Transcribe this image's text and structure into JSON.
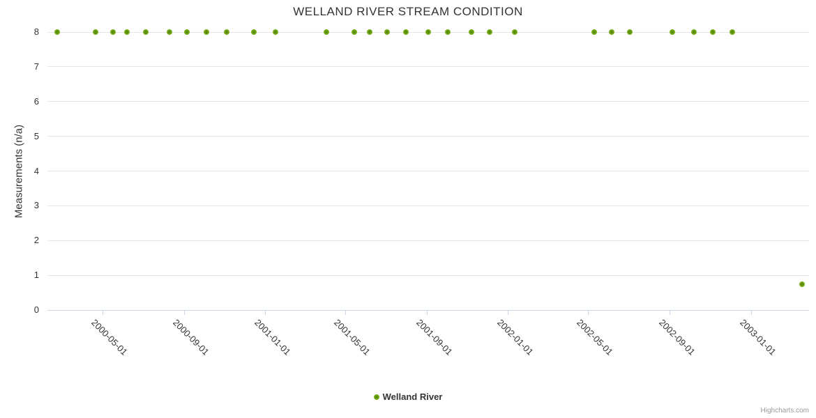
{
  "title": "WELLAND RIVER STREAM CONDITION",
  "credits": "Highcharts.com",
  "legend": {
    "position": "bottom-center",
    "items": [
      {
        "label": "Welland River",
        "color": "#8bbc21"
      }
    ]
  },
  "colors": {
    "series": "#8bbc21",
    "marker_gradient": [
      "#4f7d05",
      "#74aa1c",
      "#94c636"
    ],
    "gridline": "#e6e6e6",
    "axis_line": "#ccd6eb",
    "text": "#333333",
    "credits_text": "#999999",
    "background": "#ffffff"
  },
  "chart_data": {
    "type": "scatter",
    "title": "WELLAND RIVER STREAM CONDITION",
    "xlabel": "",
    "ylabel": "Measurements (n/a)",
    "ylim": [
      0,
      8
    ],
    "yticks": [
      0,
      1,
      2,
      3,
      4,
      5,
      6,
      7,
      8
    ],
    "xtick_labels": [
      "2000-05-01",
      "2000-09-01",
      "2001-01-01",
      "2001-05-01",
      "2001-09-01",
      "2002-01-01",
      "2002-05-01",
      "2002-09-01",
      "2003-01-01"
    ],
    "x_axis_range": [
      "2000-02-08",
      "2003-03-29"
    ],
    "grid": "horizontal-only",
    "legend_position": "bottom-center",
    "series": [
      {
        "name": "Welland River",
        "color": "#8bbc21",
        "points": [
          [
            "2000-02-23",
            8
          ],
          [
            "2000-04-20",
            8
          ],
          [
            "2000-05-17",
            8
          ],
          [
            "2000-06-07",
            8
          ],
          [
            "2000-07-05",
            8
          ],
          [
            "2000-08-09",
            8
          ],
          [
            "2000-09-05",
            8
          ],
          [
            "2000-10-04",
            8
          ],
          [
            "2000-11-03",
            8
          ],
          [
            "2000-12-14",
            8
          ],
          [
            "2001-01-16",
            8
          ],
          [
            "2001-04-02",
            8
          ],
          [
            "2001-05-14",
            8
          ],
          [
            "2001-06-06",
            8
          ],
          [
            "2001-07-03",
            8
          ],
          [
            "2001-07-31",
            8
          ],
          [
            "2001-09-02",
            8
          ],
          [
            "2001-10-02",
            8
          ],
          [
            "2001-11-06",
            8
          ],
          [
            "2001-12-04",
            8
          ],
          [
            "2002-01-10",
            8
          ],
          [
            "2002-05-10",
            8
          ],
          [
            "2002-06-05",
            8
          ],
          [
            "2002-07-03",
            8
          ],
          [
            "2002-09-04",
            8
          ],
          [
            "2002-10-07",
            8
          ],
          [
            "2002-11-04",
            8
          ],
          [
            "2002-12-04",
            8
          ],
          [
            "2003-03-18",
            0.75
          ]
        ]
      }
    ]
  }
}
